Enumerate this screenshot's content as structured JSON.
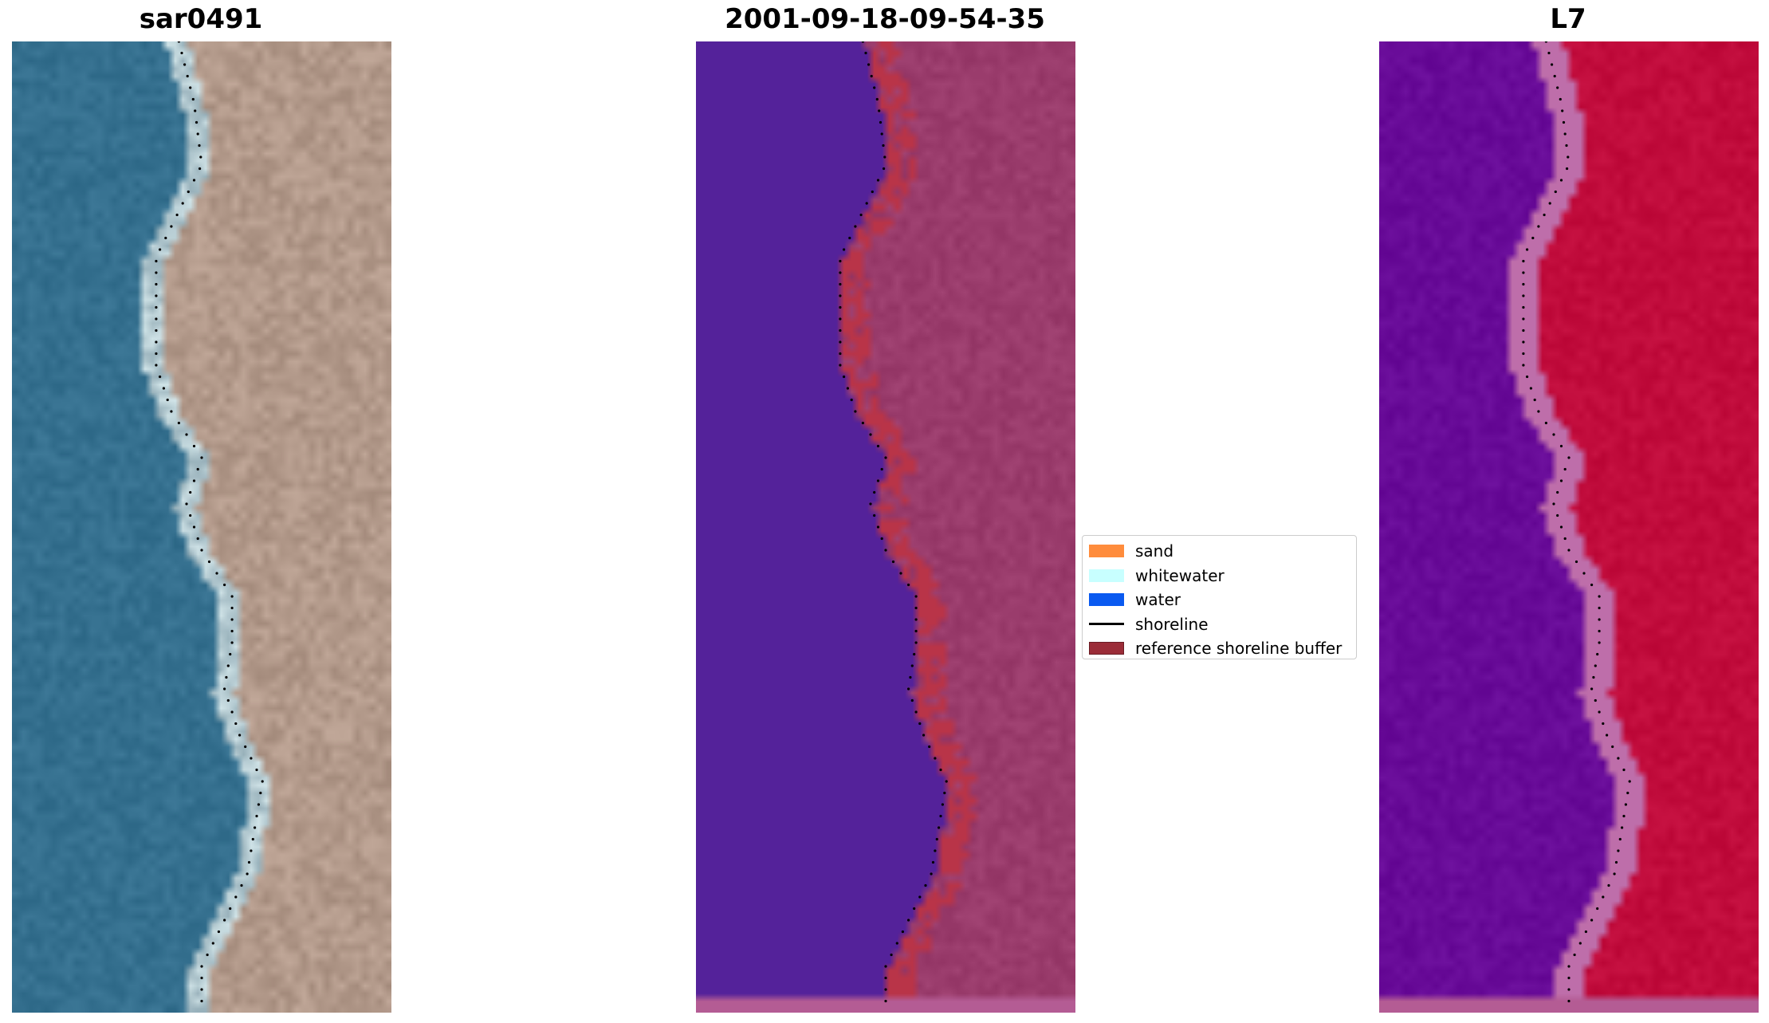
{
  "panels": [
    {
      "title": "sar0491",
      "kind": "rgb"
    },
    {
      "title": "2001-09-18-09-54-35",
      "kind": "classified"
    },
    {
      "title": "L7",
      "kind": "index"
    }
  ],
  "legend": {
    "items": [
      {
        "label": "sand",
        "type": "patch",
        "color": "#ff8c3c"
      },
      {
        "label": "whitewater",
        "type": "patch",
        "color": "#c8ffff"
      },
      {
        "label": "water",
        "type": "patch",
        "color": "#0a5af0"
      },
      {
        "label": "shoreline",
        "type": "line",
        "color": "#000000"
      },
      {
        "label": "reference shoreline buffer",
        "type": "patch",
        "color": "#9b2c38"
      }
    ]
  },
  "colors": {
    "water_rgb": "#35708f",
    "land_rgb": "#a8998f",
    "water_class": "#54229a",
    "land_class": "#9a3c6c",
    "buffer_class": "#b93448",
    "index_water": "#5e0b98",
    "index_land": "#c10c3c",
    "nodata_strip": "#b45c94"
  }
}
